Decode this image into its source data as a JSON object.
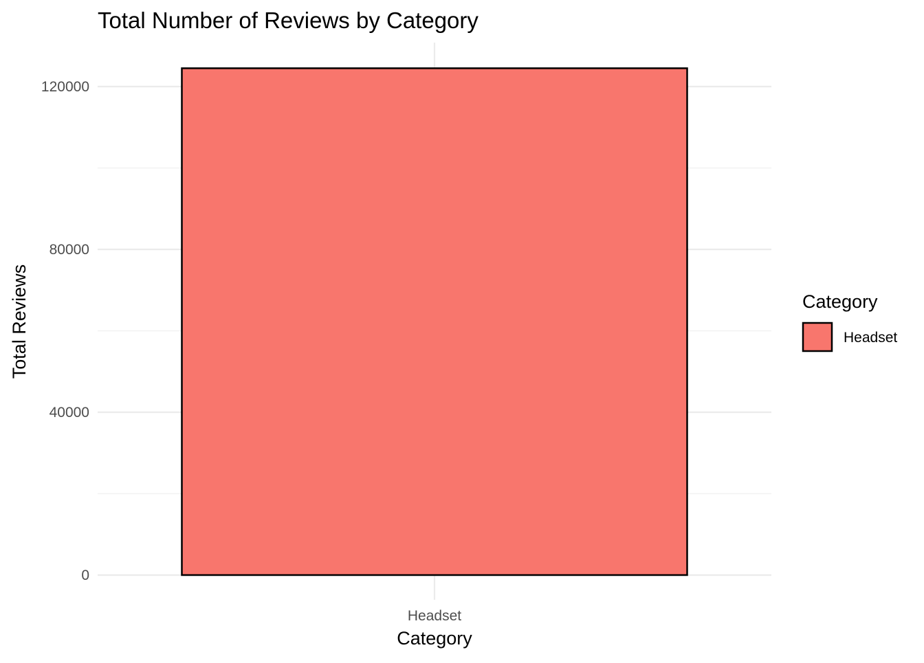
{
  "chart_data": {
    "type": "bar",
    "title": "Total Number of Reviews by Category",
    "xlabel": "Category",
    "ylabel": "Total Reviews",
    "categories": [
      "Headset"
    ],
    "values": [
      124500
    ],
    "ylim": [
      0,
      130000
    ],
    "y_ticks": [
      0,
      40000,
      80000,
      120000
    ],
    "y_tick_labels": [
      "0",
      "40000",
      "80000",
      "120000"
    ],
    "y_minor_ticks": [
      20000,
      60000,
      100000
    ],
    "grid": true,
    "legend": {
      "title": "Category",
      "position": "right",
      "items": [
        {
          "label": "Headset",
          "color": "#F8766D"
        }
      ]
    },
    "colors": {
      "bar_fill": "#F8766D",
      "bar_outline": "#000000"
    }
  }
}
